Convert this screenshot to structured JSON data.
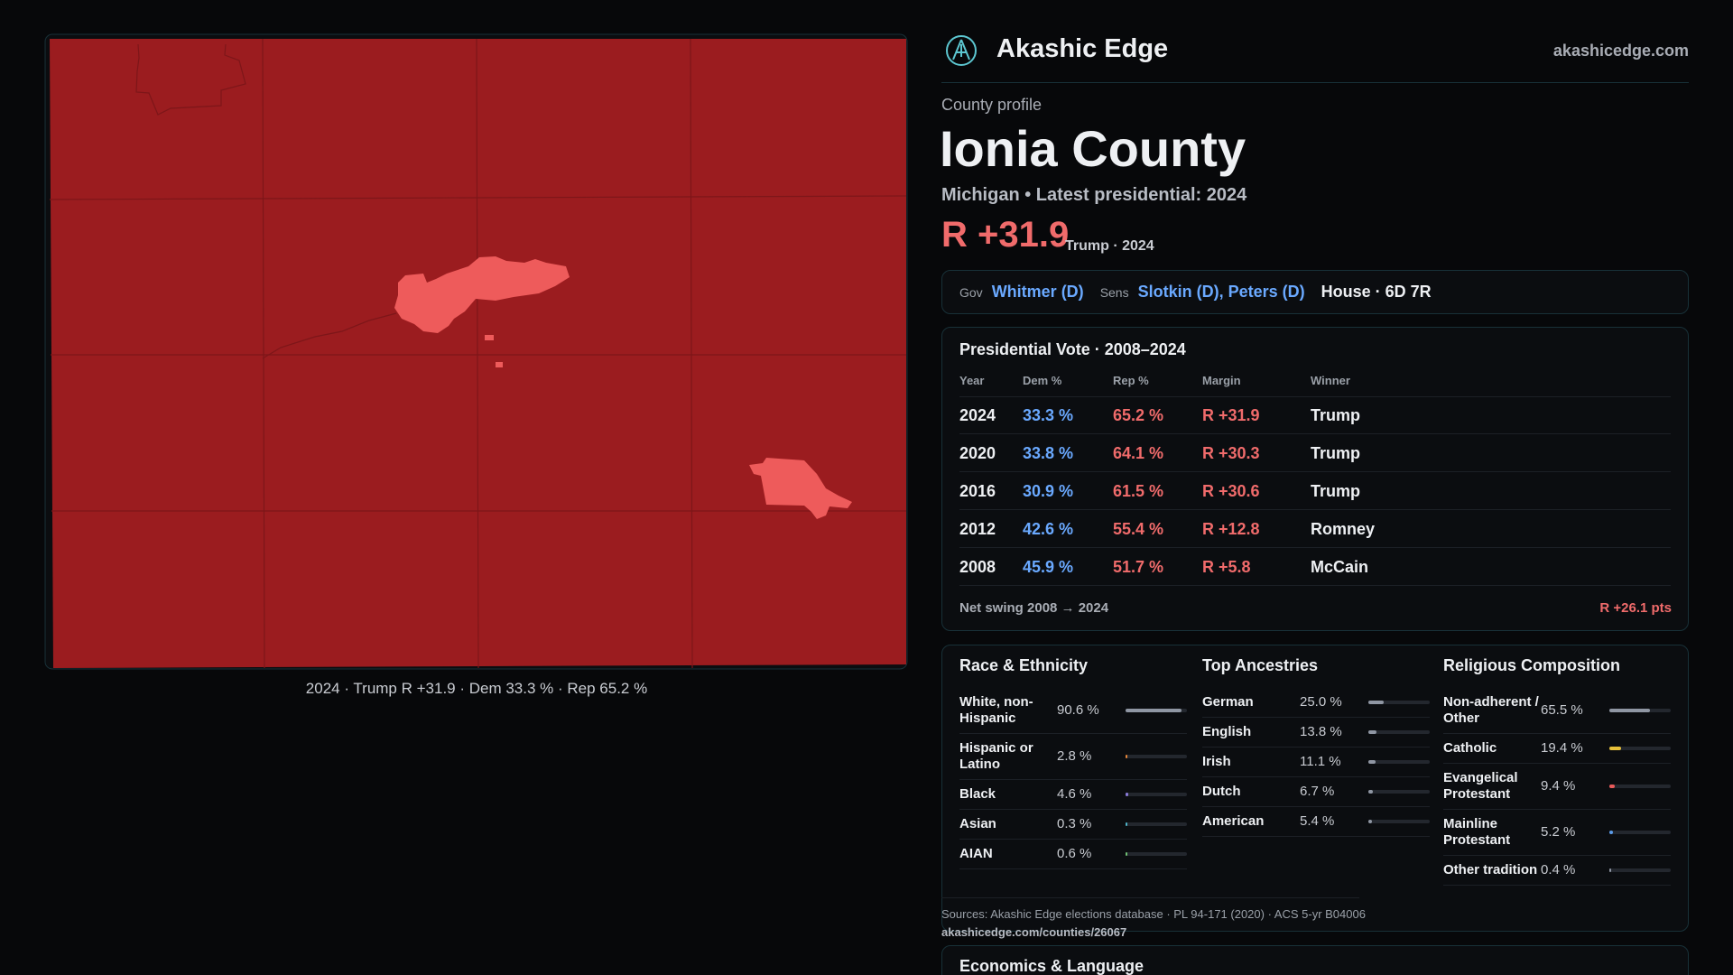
{
  "header": {
    "brand": "Akashic Edge",
    "site": "akashicedge.com"
  },
  "map": {
    "caption": "2024 · Trump R +31.9 · Dem 33.3 % · Rep 65.2 %"
  },
  "profile": {
    "eyebrow": "County profile",
    "name": "Ionia County",
    "subtitle": "Michigan • Latest presidential: 2024",
    "margin": "R +31.9",
    "margin_note": "Trump · 2024"
  },
  "officials": {
    "gov_label": "Gov",
    "gov": "Whitmer (D)",
    "sens_label": "Sens",
    "sens": "Slotkin (D), Peters (D)",
    "house": "House · 6D 7R"
  },
  "vote_table": {
    "title": "Presidential Vote · 2008–2024",
    "columns": [
      "Year",
      "Dem %",
      "Rep %",
      "Margin",
      "Winner"
    ],
    "rows": [
      [
        "2024",
        "33.3 %",
        "65.2 %",
        "R +31.9",
        "Trump"
      ],
      [
        "2020",
        "33.8 %",
        "64.1 %",
        "R +30.3",
        "Trump"
      ],
      [
        "2016",
        "30.9 %",
        "61.5 %",
        "R +30.6",
        "Trump"
      ],
      [
        "2012",
        "42.6 %",
        "55.4 %",
        "R +12.8",
        "Romney"
      ],
      [
        "2008",
        "45.9 %",
        "51.7 %",
        "R +5.8",
        "McCain"
      ]
    ],
    "swing_label": "Net swing 2008 → 2024",
    "swing_value": "R +26.1 pts"
  },
  "demographics": [
    {
      "title": "Race & Ethnicity",
      "items": [
        {
          "label": "White, non-Hispanic",
          "value": 90.6,
          "value_label": "90.6 %",
          "color": "#8f96a3"
        },
        {
          "label": "Hispanic or Latino",
          "value": 2.8,
          "value_label": "2.8 %",
          "color": "#e8873a"
        },
        {
          "label": "Black",
          "value": 4.6,
          "value_label": "4.6 %",
          "color": "#8a7bd8"
        },
        {
          "label": "Asian",
          "value": 0.3,
          "value_label": "0.3 %",
          "color": "#4fb3c8"
        },
        {
          "label": "AIAN",
          "value": 0.6,
          "value_label": "0.6 %",
          "color": "#6fbf73"
        }
      ]
    },
    {
      "title": "Top Ancestries",
      "items": [
        {
          "label": "German",
          "value": 25.0,
          "value_label": "25.0 %",
          "color": "#8f96a3"
        },
        {
          "label": "English",
          "value": 13.8,
          "value_label": "13.8 %",
          "color": "#8f96a3"
        },
        {
          "label": "Irish",
          "value": 11.1,
          "value_label": "11.1 %",
          "color": "#8f96a3"
        },
        {
          "label": "Dutch",
          "value": 6.7,
          "value_label": "6.7 %",
          "color": "#8f96a3"
        },
        {
          "label": "American",
          "value": 5.4,
          "value_label": "5.4 %",
          "color": "#8f96a3"
        }
      ]
    },
    {
      "title": "Religious Composition",
      "items": [
        {
          "label": "Non-adherent / Other",
          "value": 65.5,
          "value_label": "65.5 %",
          "color": "#8f96a3"
        },
        {
          "label": "Catholic",
          "value": 19.4,
          "value_label": "19.4 %",
          "color": "#e8c13a"
        },
        {
          "label": "Evangelical Protestant",
          "value": 9.4,
          "value_label": "9.4 %",
          "color": "#e85a5a"
        },
        {
          "label": "Mainline Protestant",
          "value": 5.2,
          "value_label": "5.2 %",
          "color": "#5a9ae8"
        },
        {
          "label": "Other tradition",
          "value": 0.4,
          "value_label": "0.4 %",
          "color": "#8f96a3"
        }
      ]
    }
  ],
  "sources": "Sources: Akashic Edge elections database · PL 94-171 (2020) · ACS 5-yr B04006",
  "url": "akashicedge.com/counties/26067",
  "next_section": "Economics & Language"
}
